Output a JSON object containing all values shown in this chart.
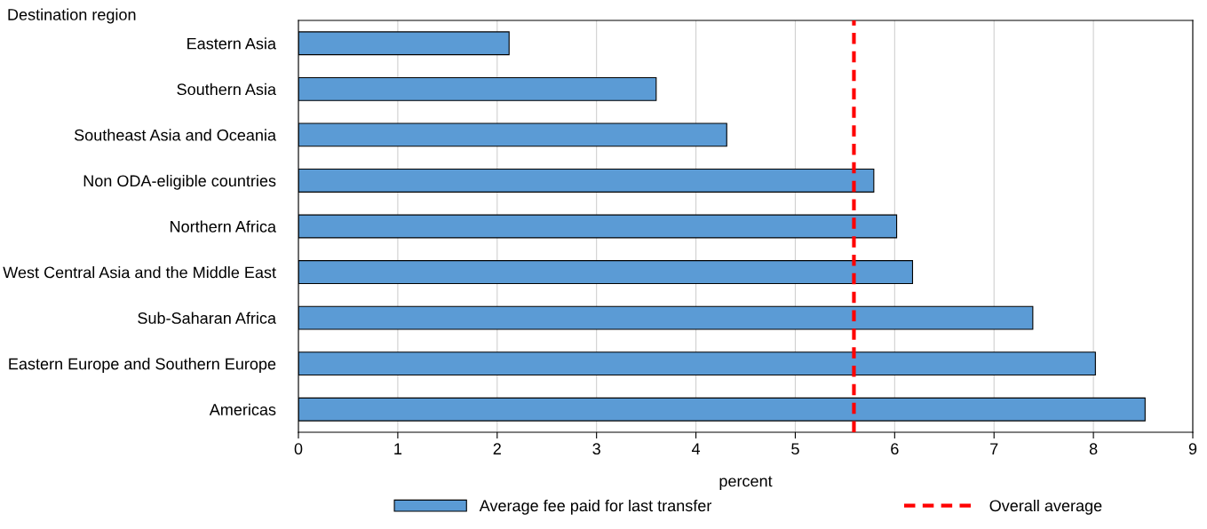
{
  "chart_data": {
    "type": "bar",
    "orientation": "horizontal",
    "ylabel": "Destination region",
    "xlabel": "percent",
    "categories": [
      "Eastern Asia",
      "Southern Asia",
      "Southeast Asia and Oceania",
      "Non ODA-eligible countries",
      "Northern Africa",
      "West Central Asia and the Middle East",
      "Sub-Saharan Africa",
      "Eastern Europe and Southern Europe",
      "Americas"
    ],
    "series": [
      {
        "name": "Average fee paid for last transfer",
        "color": "#5b9bd5",
        "values": [
          2.12,
          3.6,
          4.31,
          5.79,
          6.02,
          6.18,
          7.39,
          8.02,
          8.52
        ]
      }
    ],
    "xlim": [
      0,
      9
    ],
    "xticks": [
      0,
      1,
      2,
      3,
      4,
      5,
      6,
      7,
      8,
      9
    ],
    "grid": "x",
    "legend": "bottom",
    "ref_lines": [
      {
        "axis": "x",
        "value": 5.59,
        "label": "Overall average",
        "color": "#ff0000",
        "line_style": "dashed"
      }
    ]
  }
}
